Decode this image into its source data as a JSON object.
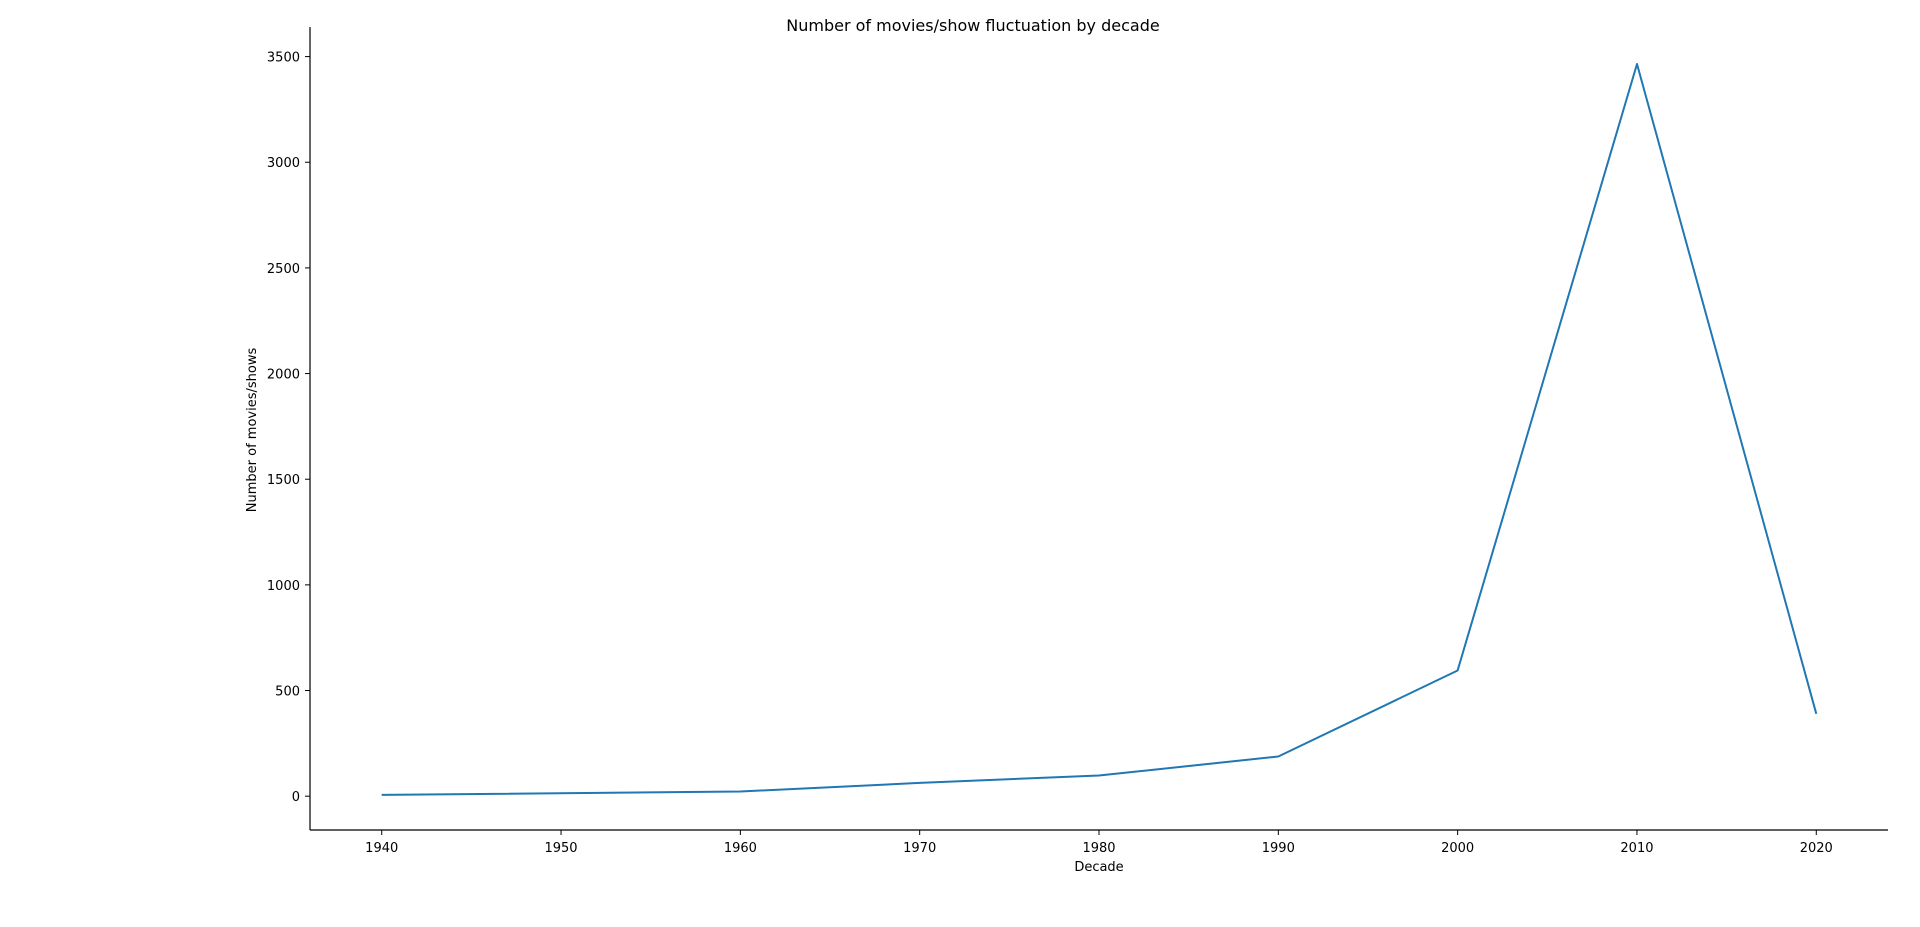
{
  "chart_data": {
    "type": "line",
    "title": "Number of movies/show fluctuation by decade",
    "xlabel": "Decade",
    "ylabel": "Number of movies/shows",
    "x": [
      1940,
      1960,
      1970,
      1980,
      1990,
      2000,
      2010,
      2020
    ],
    "series": [
      {
        "values": [
          6,
          22,
          63,
          98,
          188,
          595,
          3465,
          390
        ]
      }
    ],
    "xlim": [
      1936,
      2024
    ],
    "ylim": [
      -160,
      3640
    ],
    "xticks": [
      1940,
      1950,
      1960,
      1970,
      1980,
      1990,
      2000,
      2010,
      2020
    ],
    "yticks": [
      0,
      500,
      1000,
      1500,
      2000,
      2500,
      3000,
      3500
    ],
    "grid": false,
    "legend": "none",
    "line_color": "#1f77b4"
  }
}
